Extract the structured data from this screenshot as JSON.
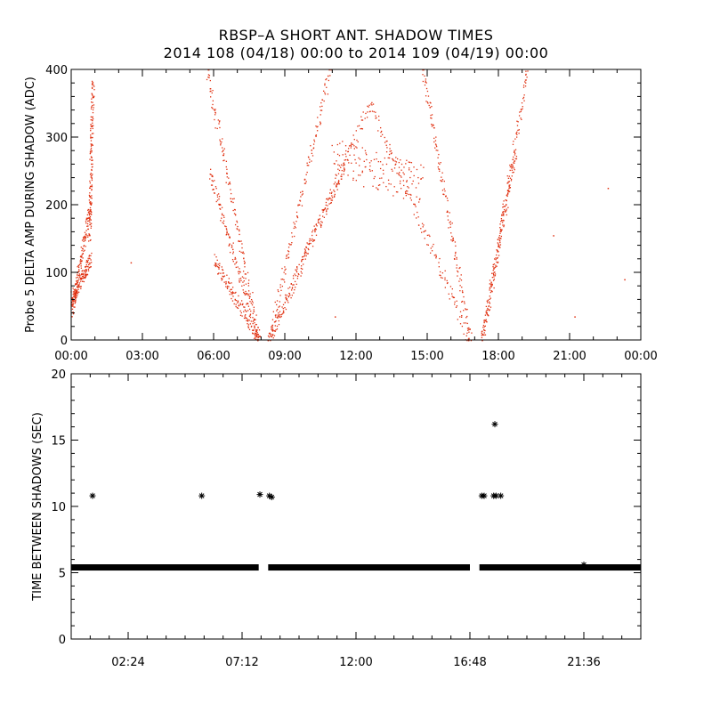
{
  "title_line1": "RBSP–A SHORT ANT. SHADOW TIMES",
  "title_line2": "2014 108 (04/18) 00:00 to 2014 109 (04/19) 00:00",
  "chart_data": [
    {
      "type": "scatter",
      "color": "#e03010",
      "ylabel": "Probe 5 DELTA AMP DURING SHADOW (ADC)",
      "xlabel": "",
      "xlim": [
        0,
        24
      ],
      "ylim": [
        0,
        400
      ],
      "x_ticks": [
        "00:00",
        "03:00",
        "06:00",
        "09:00",
        "12:00",
        "15:00",
        "18:00",
        "21:00",
        "00:00"
      ],
      "y_ticks": [
        0,
        100,
        200,
        300,
        400
      ],
      "branches": [
        {
          "name": "",
          "from": [
            0.0,
            40
          ],
          "to": [
            0.8,
            200
          ],
          "spread": 12
        },
        {
          "name": "",
          "from": [
            0.0,
            60
          ],
          "to": [
            0.8,
            120
          ],
          "spread": 10
        },
        {
          "name": "",
          "from": [
            0.75,
            150
          ],
          "to": [
            0.9,
            385
          ],
          "spread": 10
        },
        {
          "name": "",
          "from": [
            5.7,
            400
          ],
          "to": [
            7.9,
            0
          ],
          "spread": 12
        },
        {
          "name": "",
          "from": [
            6.0,
            120
          ],
          "to": [
            7.9,
            0
          ],
          "spread": 10
        },
        {
          "name": "",
          "from": [
            5.8,
            250
          ],
          "to": [
            7.9,
            0
          ],
          "spread": 10
        },
        {
          "name": "",
          "from": [
            8.3,
            0
          ],
          "to": [
            10.9,
            400
          ],
          "spread": 12
        },
        {
          "name": "",
          "from": [
            8.3,
            0
          ],
          "to": [
            12.6,
            350
          ],
          "spread": 12
        },
        {
          "name": "",
          "from": [
            8.3,
            0
          ],
          "to": [
            11.5,
            260
          ],
          "spread": 10
        },
        {
          "name": "",
          "from": [
            11.0,
            270
          ],
          "to": [
            14.8,
            230
          ],
          "spread": 30
        },
        {
          "name": "",
          "from": [
            12.6,
            350
          ],
          "to": [
            16.8,
            0
          ],
          "spread": 12
        },
        {
          "name": "",
          "from": [
            14.8,
            400
          ],
          "to": [
            16.8,
            0
          ],
          "spread": 12
        },
        {
          "name": "",
          "from": [
            17.3,
            0
          ],
          "to": [
            19.2,
            400
          ],
          "spread": 12
        },
        {
          "name": "",
          "from": [
            17.3,
            0
          ],
          "to": [
            18.7,
            280
          ],
          "spread": 12
        }
      ],
      "outliers": [
        [
          2.5,
          115
        ],
        [
          11.1,
          35
        ],
        [
          20.3,
          155
        ],
        [
          21.2,
          35
        ],
        [
          22.6,
          225
        ],
        [
          23.3,
          90
        ]
      ]
    },
    {
      "type": "scatter",
      "marker": "asterisk",
      "color": "#000000",
      "ylabel": "TIME BETWEEN SHADOWS (SEC)",
      "xlabel": "",
      "xlim": [
        0,
        24
      ],
      "ylim": [
        0,
        20
      ],
      "x_tick_values": [
        2.4,
        7.2,
        12.0,
        16.8,
        21.6
      ],
      "x_ticks": [
        "02:24",
        "07:12",
        "12:00",
        "16:48",
        "21:36"
      ],
      "y_ticks": [
        0,
        5,
        10,
        15,
        20
      ],
      "baseline": {
        "y": 5.4,
        "segments": [
          [
            0.0,
            7.9
          ],
          [
            8.3,
            16.8
          ],
          [
            17.2,
            24.0
          ]
        ]
      },
      "points": [
        [
          0.9,
          10.8
        ],
        [
          5.5,
          10.8
        ],
        [
          7.95,
          10.9
        ],
        [
          8.35,
          10.8
        ],
        [
          8.45,
          10.7
        ],
        [
          17.3,
          10.8
        ],
        [
          17.4,
          10.8
        ],
        [
          17.8,
          10.8
        ],
        [
          17.9,
          10.8
        ],
        [
          18.1,
          10.8
        ],
        [
          17.85,
          16.2
        ],
        [
          21.6,
          5.6
        ]
      ]
    }
  ]
}
